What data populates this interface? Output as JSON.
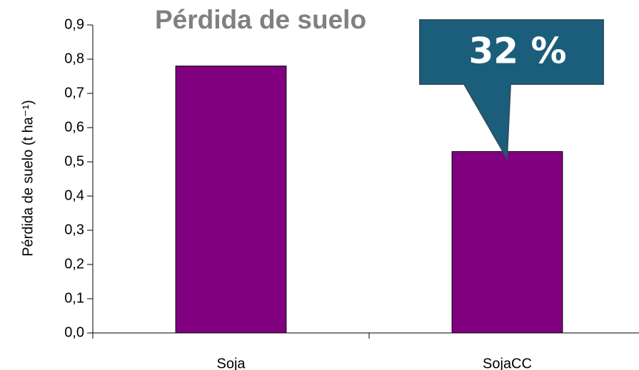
{
  "chart_data": {
    "type": "bar",
    "title": "Pérdida de suelo",
    "ylabel": "Pérdida de suelo (t ha⁻¹)",
    "categories": [
      "Soja",
      "SojaCC"
    ],
    "values": [
      0.78,
      0.53
    ],
    "color": "#800080",
    "annotation": "32 %",
    "ylim": [
      0,
      0.9
    ],
    "yticks": [
      {
        "value": 0,
        "label": "0,0"
      },
      {
        "value": 0.1,
        "label": "0,1"
      },
      {
        "value": 0.2,
        "label": "0,2"
      },
      {
        "value": 0.3,
        "label": "0,3"
      },
      {
        "value": 0.4,
        "label": "0,4"
      },
      {
        "value": 0.5,
        "label": "0,5"
      },
      {
        "value": 0.6,
        "label": "0,6"
      },
      {
        "value": 0.7,
        "label": "0,7"
      },
      {
        "value": 0.8,
        "label": "0,8"
      },
      {
        "value": 0.9,
        "label": "0,9"
      }
    ],
    "grid": false
  }
}
